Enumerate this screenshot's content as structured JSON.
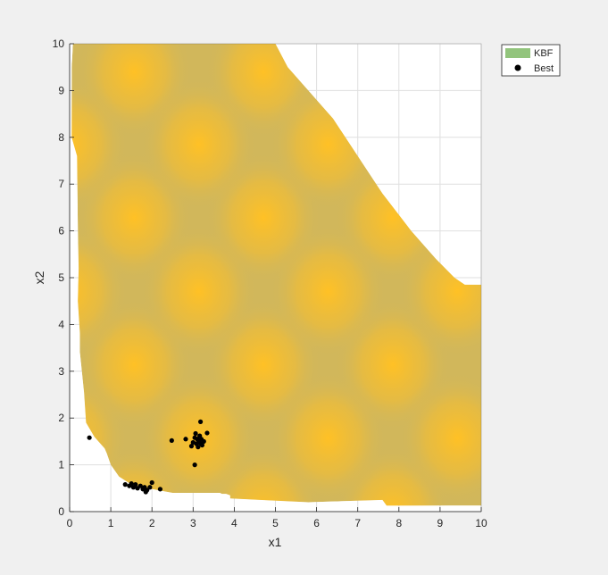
{
  "chart_data": {
    "type": "scatter",
    "title": "",
    "xlabel": "x1",
    "ylabel": "x2",
    "xlim": [
      0,
      10
    ],
    "ylim": [
      0,
      10
    ],
    "grid": true,
    "xticks": [
      "0",
      "1",
      "2",
      "3",
      "4",
      "5",
      "6",
      "7",
      "8",
      "9",
      "10"
    ],
    "yticks": [
      "0",
      "1",
      "2",
      "3",
      "4",
      "5",
      "6",
      "7",
      "8",
      "9",
      "10"
    ],
    "legend": {
      "placement": "top-right-outside",
      "entries": [
        {
          "label": "KBF",
          "marker": "patch",
          "color": "#92c47c"
        },
        {
          "label": "Best",
          "marker": "dot",
          "color": "#000000"
        }
      ]
    },
    "colors": {
      "background": "#f0f0f0",
      "axes": "#ffffff",
      "region_base": "#d1b75b",
      "region_peak": "#ffc125",
      "grid": "#dfdfdf"
    },
    "region": {
      "name": "KBF",
      "boundary": [
        [
          0.08,
          10
        ],
        [
          5.0,
          10
        ],
        [
          5.3,
          9.5
        ],
        [
          5.8,
          9.0
        ],
        [
          6.4,
          8.4
        ],
        [
          7.0,
          7.6
        ],
        [
          7.6,
          6.8
        ],
        [
          8.3,
          6.0
        ],
        [
          8.9,
          5.4
        ],
        [
          9.35,
          5.0
        ],
        [
          9.6,
          4.85
        ],
        [
          10,
          4.85
        ],
        [
          10,
          0.13
        ],
        [
          8.0,
          0.13
        ],
        [
          7.7,
          0.13
        ],
        [
          7.6,
          0.25
        ],
        [
          5.8,
          0.2
        ],
        [
          3.9,
          0.28
        ],
        [
          3.9,
          0.35
        ],
        [
          3.8,
          0.38
        ],
        [
          3.7,
          0.38
        ],
        [
          3.65,
          0.4
        ],
        [
          2.5,
          0.4
        ],
        [
          2.0,
          0.48
        ],
        [
          1.5,
          0.58
        ],
        [
          1.2,
          0.75
        ],
        [
          1.0,
          1.0
        ],
        [
          0.9,
          1.25
        ],
        [
          0.85,
          1.35
        ],
        [
          0.6,
          1.6
        ],
        [
          0.4,
          1.9
        ],
        [
          0.35,
          2.55
        ],
        [
          0.25,
          3.4
        ],
        [
          0.25,
          3.8
        ],
        [
          0.2,
          4.5
        ],
        [
          0.22,
          5.2
        ],
        [
          0.2,
          6.0
        ],
        [
          0.18,
          7.6
        ],
        [
          0.05,
          8.0
        ],
        [
          0.05,
          9.5
        ],
        [
          0.08,
          10
        ]
      ],
      "peaks": [
        [
          1.57,
          9.4
        ],
        [
          4.71,
          9.4
        ],
        [
          7.85,
          9.4
        ],
        [
          1.57,
          6.28
        ],
        [
          4.71,
          6.28
        ],
        [
          7.85,
          6.28
        ],
        [
          1.57,
          3.14
        ],
        [
          4.71,
          3.14
        ],
        [
          7.85,
          3.14
        ],
        [
          1.57,
          0.0
        ],
        [
          4.71,
          0.0
        ],
        [
          7.85,
          0.0
        ],
        [
          0.0,
          7.85
        ],
        [
          3.14,
          7.85
        ],
        [
          6.28,
          7.85
        ],
        [
          9.42,
          7.85
        ],
        [
          0.0,
          4.71
        ],
        [
          3.14,
          4.71
        ],
        [
          6.28,
          4.71
        ],
        [
          9.42,
          4.71
        ],
        [
          0.0,
          1.57
        ],
        [
          3.14,
          1.57
        ],
        [
          6.28,
          1.57
        ],
        [
          9.42,
          1.57
        ]
      ]
    },
    "series": [
      {
        "name": "Best",
        "points": [
          [
            0.48,
            1.58
          ],
          [
            2.48,
            1.52
          ],
          [
            2.82,
            1.55
          ],
          [
            2.96,
            1.4
          ],
          [
            3.0,
            1.48
          ],
          [
            3.04,
            1.58
          ],
          [
            3.06,
            1.67
          ],
          [
            3.08,
            1.45
          ],
          [
            3.1,
            1.55
          ],
          [
            3.12,
            1.38
          ],
          [
            3.14,
            1.5
          ],
          [
            3.16,
            1.62
          ],
          [
            3.18,
            1.46
          ],
          [
            3.2,
            1.55
          ],
          [
            3.22,
            1.42
          ],
          [
            3.26,
            1.5
          ],
          [
            3.18,
            1.92
          ],
          [
            3.34,
            1.68
          ],
          [
            3.04,
            1.0
          ],
          [
            1.35,
            0.58
          ],
          [
            1.45,
            0.55
          ],
          [
            1.5,
            0.6
          ],
          [
            1.55,
            0.52
          ],
          [
            1.6,
            0.58
          ],
          [
            1.65,
            0.5
          ],
          [
            1.72,
            0.55
          ],
          [
            1.78,
            0.48
          ],
          [
            1.82,
            0.52
          ],
          [
            1.88,
            0.46
          ],
          [
            1.95,
            0.52
          ],
          [
            2.0,
            0.62
          ],
          [
            2.2,
            0.48
          ],
          [
            1.85,
            0.42
          ]
        ]
      }
    ]
  }
}
